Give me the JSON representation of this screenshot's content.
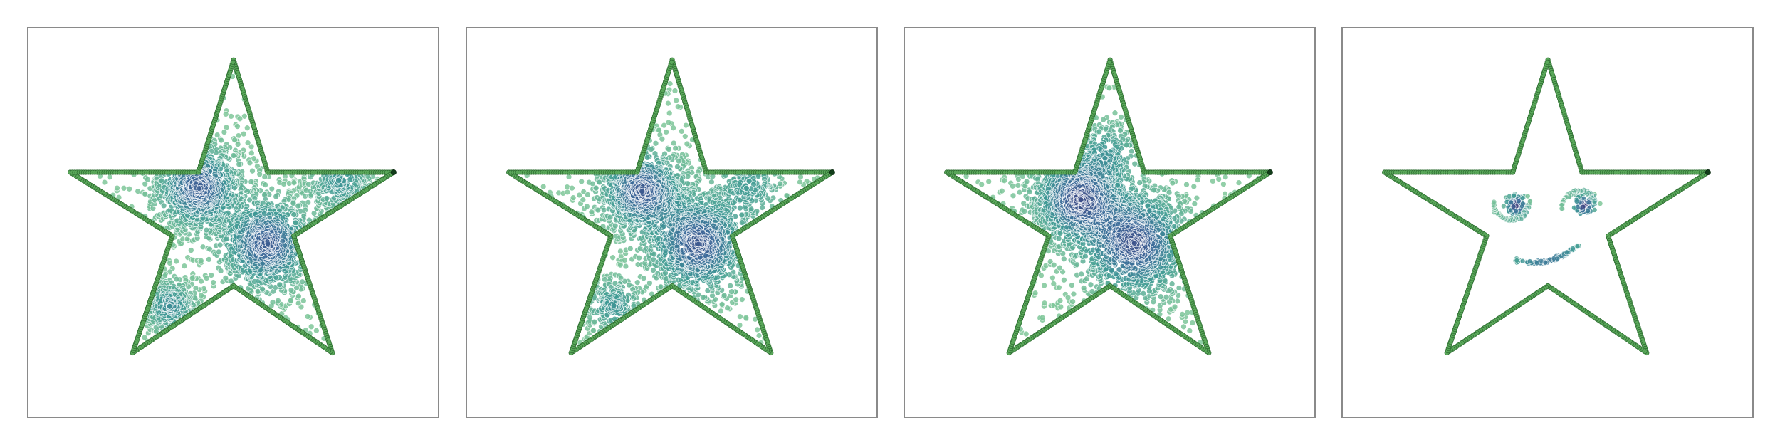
{
  "panels": [
    {
      "type": "density"
    },
    {
      "type": "density"
    },
    {
      "type": "density"
    },
    {
      "type": "face"
    }
  ]
}
